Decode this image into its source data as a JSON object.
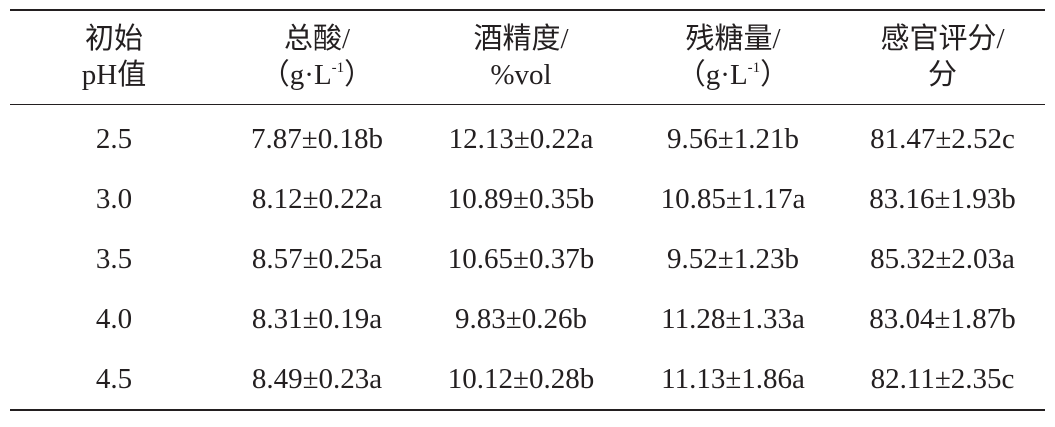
{
  "table": {
    "headers": [
      {
        "line1": "初始",
        "line2_pre": "pH值",
        "line2_sup": "",
        "line2_post": ""
      },
      {
        "line1": "总酸/",
        "line2_pre": "（g·L",
        "line2_sup": "-1",
        "line2_post": "）"
      },
      {
        "line1": "酒精度/",
        "line2_pre": "%vol",
        "line2_sup": "",
        "line2_post": ""
      },
      {
        "line1": "残糖量/",
        "line2_pre": "（g·L",
        "line2_sup": "-1",
        "line2_post": "）"
      },
      {
        "line1": "感官评分/",
        "line2_pre": "分",
        "line2_sup": "",
        "line2_post": ""
      }
    ],
    "rows": [
      [
        "2.5",
        "7.87±0.18b",
        "12.13±0.22a",
        "9.56±1.21b",
        "81.47±2.52c"
      ],
      [
        "3.0",
        "8.12±0.22a",
        "10.89±0.35b",
        "10.85±1.17a",
        "83.16±1.93b"
      ],
      [
        "3.5",
        "8.57±0.25a",
        "10.65±0.37b",
        "9.52±1.23b",
        "85.32±2.03a"
      ],
      [
        "4.0",
        "8.31±0.19a",
        "9.83±0.26b",
        "11.28±1.33a",
        "83.04±1.87b"
      ],
      [
        "4.5",
        "8.49±0.23a",
        "10.12±0.28b",
        "11.13±1.86a",
        "82.11±2.35c"
      ]
    ]
  }
}
